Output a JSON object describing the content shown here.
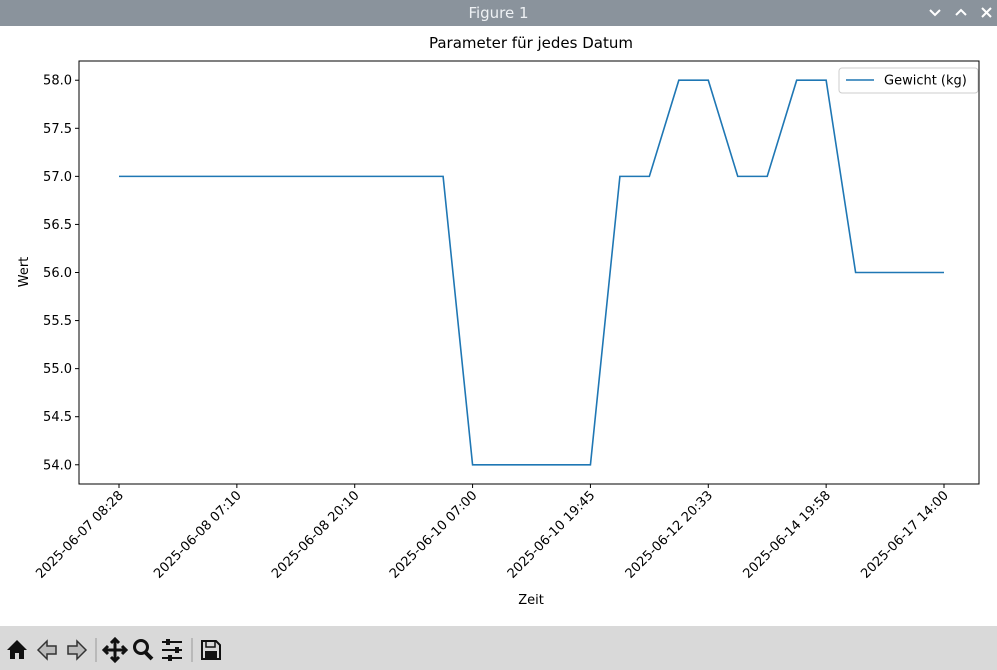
{
  "window": {
    "title": "Figure 1"
  },
  "chart_data": {
    "type": "line",
    "title": "Parameter für jedes Datum",
    "xlabel": "Zeit",
    "ylabel": "Wert",
    "categories": [
      "2025-06-07 08:28",
      null,
      null,
      null,
      "2025-06-08 07:10",
      null,
      null,
      null,
      "2025-06-08 20:10",
      null,
      null,
      null,
      "2025-06-10 07:00",
      null,
      null,
      null,
      "2025-06-10 19:45",
      null,
      null,
      null,
      "2025-06-12 20:33",
      null,
      null,
      null,
      "2025-06-14 19:58",
      null,
      null,
      null,
      "2025-06-17 14:00"
    ],
    "series": [
      {
        "name": "Gewicht (kg)",
        "color": "#1f77b4",
        "values": [
          57,
          57,
          57,
          57,
          57,
          57,
          57,
          57,
          57,
          57,
          57,
          57,
          54,
          54,
          54,
          54,
          54,
          57,
          57,
          58,
          58,
          57,
          57,
          58,
          58,
          56,
          56,
          56,
          56
        ]
      }
    ],
    "ylim": [
      53.8,
      58.2
    ],
    "yticks": [
      {
        "value": 54,
        "label": "54.0"
      },
      54.5,
      {
        "value": 55,
        "label": "55.0"
      },
      55.5,
      {
        "value": 56,
        "label": "56.0"
      },
      56.5,
      {
        "value": 57,
        "label": "57.0"
      },
      57.5,
      {
        "value": 58,
        "label": "58.0"
      }
    ],
    "legend": "upper right",
    "grid": false
  }
}
